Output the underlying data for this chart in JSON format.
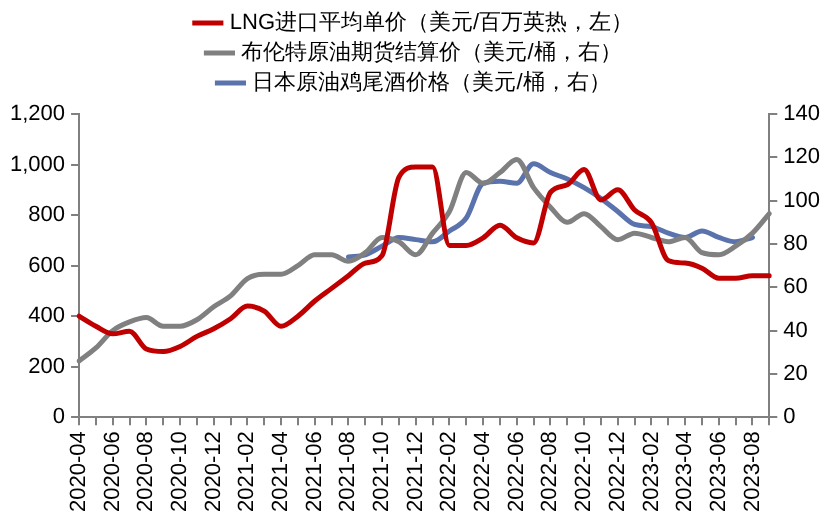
{
  "chart_data": {
    "type": "line",
    "categories": [
      "2020-04",
      null,
      "2020-06",
      null,
      "2020-08",
      null,
      "2020-10",
      null,
      "2020-12",
      null,
      "2021-02",
      null,
      "2021-04",
      null,
      "2021-06",
      null,
      "2021-08",
      null,
      "2021-10",
      null,
      "2021-12",
      null,
      "2022-02",
      null,
      "2022-04",
      null,
      "2022-06",
      null,
      "2022-08",
      null,
      "2022-10",
      null,
      "2022-12",
      null,
      "2023-02",
      null,
      "2023-04",
      null,
      "2023-06",
      null,
      "2023-08",
      null
    ],
    "series": [
      {
        "name": "LNG进口平均单价（美元/百万英热，左）",
        "color": "#c00000",
        "values": [
          400,
          360,
          330,
          340,
          270,
          260,
          280,
          320,
          350,
          390,
          440,
          420,
          360,
          400,
          460,
          510,
          560,
          610,
          640,
          950,
          990,
          990,
          680,
          680,
          710,
          760,
          710,
          690,
          890,
          920,
          980,
          860,
          900,
          820,
          770,
          620,
          610,
          590,
          550,
          550,
          560,
          560
        ]
      },
      {
        "name": "布伦特原油期货结算价（美元/桶，右）",
        "color": "#808080",
        "axis": "y2",
        "values": [
          26,
          32,
          40,
          44,
          46,
          42,
          42,
          45,
          51,
          56,
          64,
          66,
          66,
          70,
          75,
          75,
          72,
          76,
          83,
          81,
          75,
          85,
          95,
          113,
          108,
          113,
          119,
          106,
          97,
          90,
          94,
          88,
          82,
          85,
          83,
          81,
          83,
          76,
          75,
          79,
          85,
          94
        ]
      },
      {
        "name": "日本原油鸡尾酒价格（美元/桶，右）",
        "color": "#5b73ad",
        "axis": "y2",
        "values": [
          null,
          null,
          null,
          null,
          null,
          null,
          null,
          null,
          null,
          null,
          null,
          null,
          null,
          null,
          null,
          null,
          74,
          75,
          79,
          83,
          82,
          81,
          86,
          92,
          108,
          109,
          108,
          117,
          113,
          110,
          106,
          101,
          95,
          89,
          88,
          85,
          83,
          86,
          83,
          81,
          83,
          null
        ]
      }
    ],
    "ylim": [
      0,
      1200
    ],
    "yticks": [
      0,
      200,
      400,
      600,
      800,
      {
        "value": 1000,
        "label": "1,000"
      },
      {
        "value": 1200,
        "label": "1,200"
      }
    ],
    "y2lim": [
      0,
      140
    ],
    "y2ticks": [
      0,
      20,
      40,
      60,
      80,
      100,
      120,
      140
    ],
    "grid": false,
    "legend": "top",
    "marker": "none",
    "line_style": "solid"
  }
}
